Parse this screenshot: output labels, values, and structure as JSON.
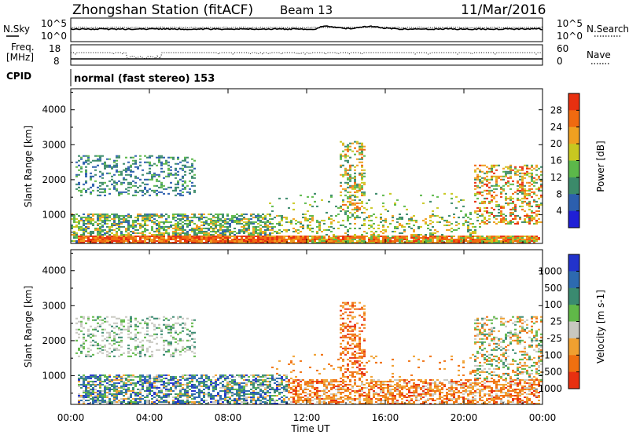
{
  "header": {
    "title": "Zhongshan Station (fitACF)",
    "beam": "Beam 13",
    "date": "11/Mar/2016"
  },
  "top_panels": {
    "nsky_label": "N.Sky",
    "nsky_tick_hi": "10^5",
    "nsky_tick_lo": "10^0",
    "nsearch_label": "N.Search",
    "nsearch_tick_hi": "10^5",
    "nsearch_tick_lo": "10^0",
    "freq_label_1": "Freq.",
    "freq_label_2": "[MHz]",
    "freq_tick_hi": "18",
    "freq_tick_lo": "8",
    "nave_label": "Nave",
    "nave_tick_hi": "60",
    "nave_tick_lo": "0",
    "cpid_label": "CPID",
    "cpid_value": "normal (fast stereo) 153"
  },
  "chart_data": [
    {
      "type": "heatmap",
      "title": "Power",
      "ylabel": "Slant Range [km]",
      "xlabel": "",
      "y_ticks": [
        1000,
        2000,
        3000,
        4000
      ],
      "ylim": [
        180,
        4600
      ],
      "xlim_hours": [
        0,
        24
      ],
      "colorbar": {
        "label": "Power [dB]",
        "ticks": [
          "4",
          "8",
          "12",
          "16",
          "20",
          "24",
          "28"
        ],
        "colors": [
          "#1f1fd6",
          "#2c5fae",
          "#3b8a6a",
          "#5cb84a",
          "#c8c820",
          "#f0a020",
          "#f06a10",
          "#e83010"
        ]
      },
      "features": [
        {
          "range_km": "200-400",
          "hours": "0-23.8",
          "dominant_power_dB": "24-30"
        },
        {
          "range_km": "400-1000",
          "hours": "0-10",
          "dominant_power_dB": "8-20"
        },
        {
          "range_km": "1500-2700",
          "hours": "0.2-6",
          "dominant_power_dB": "4-12"
        },
        {
          "range_km": "700-3100",
          "hours": "13.5-15",
          "dominant_power_dB": "12-24"
        },
        {
          "range_km": "700-2400",
          "hours": "20.5-24",
          "dominant_power_dB": "12-28"
        }
      ]
    },
    {
      "type": "heatmap",
      "title": "Velocity",
      "ylabel": "Slant Range [km]",
      "xlabel": "Time UT",
      "x_ticks": [
        "00:00",
        "04:00",
        "08:00",
        "12:00",
        "16:00",
        "20:00",
        "00:00"
      ],
      "y_ticks": [
        1000,
        2000,
        3000,
        4000
      ],
      "ylim": [
        180,
        4600
      ],
      "xlim_hours": [
        0,
        24
      ],
      "colorbar": {
        "label": "Velocity [m s-1]",
        "ticks": [
          "1000",
          "500",
          "100",
          "25",
          "-25",
          "-100",
          "-500",
          "-1000"
        ],
        "colors": [
          "#2233cc",
          "#2d6ab0",
          "#3a8a70",
          "#60b848",
          "#c8c8c0",
          "#f0a030",
          "#f07010",
          "#e83010"
        ]
      },
      "features": [
        {
          "range_km": "200-1000",
          "hours": "0-11",
          "dominant_velocity_ms": "100 to 1000"
        },
        {
          "range_km": "1500-2700",
          "hours": "0.2-6",
          "dominant_velocity_ms": "-25 to 25"
        },
        {
          "range_km": "200-900",
          "hours": "12-24",
          "dominant_velocity_ms": "-100 to -500"
        },
        {
          "range_km": "700-3100",
          "hours": "13.5-15",
          "dominant_velocity_ms": "-100 to -1000"
        },
        {
          "range_km": "700-2700",
          "hours": "20.5-24",
          "dominant_velocity_ms": "-25 to 100"
        }
      ]
    }
  ]
}
